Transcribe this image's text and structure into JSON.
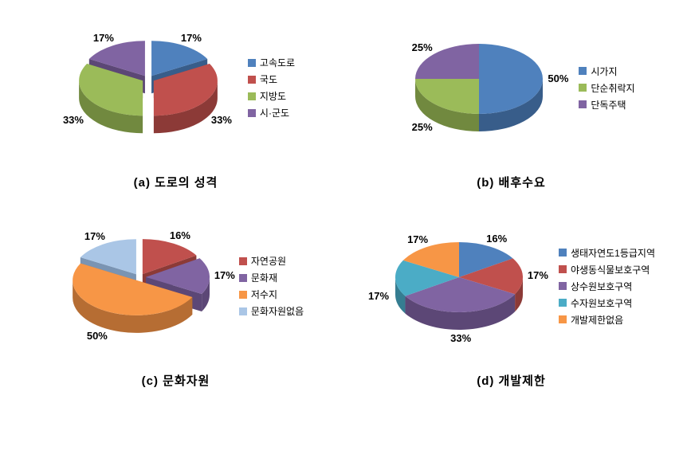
{
  "charts": [
    {
      "caption": "(a) 도로의 성격",
      "type": "pie",
      "radius": 80,
      "depth": 22,
      "tilt": 0.55,
      "explode_all": true,
      "explode_dist": 8,
      "slices": [
        {
          "label": "고속도로",
          "value": 17,
          "color": "#4f81bd",
          "dark": "#385d8a",
          "pct": "17%"
        },
        {
          "label": "국도",
          "value": 33,
          "color": "#c0504d",
          "dark": "#8c3a37",
          "pct": "33%"
        },
        {
          "label": "지방도",
          "value": 33,
          "color": "#9bbb59",
          "dark": "#71893f",
          "pct": "33%"
        },
        {
          "label": "시·군도",
          "value": 17,
          "color": "#8064a2",
          "dark": "#5c4776",
          "pct": "17%"
        }
      ]
    },
    {
      "caption": "(b) 배후수요",
      "type": "pie",
      "radius": 80,
      "depth": 22,
      "tilt": 0.55,
      "explode_all": false,
      "slices": [
        {
          "label": "시가지",
          "value": 50,
          "color": "#4f81bd",
          "dark": "#385d8a",
          "pct": "50%"
        },
        {
          "label": "단순취락지",
          "value": 25,
          "color": "#9bbb59",
          "dark": "#71893f",
          "pct": "25%"
        },
        {
          "label": "단독주택",
          "value": 25,
          "color": "#8064a2",
          "dark": "#5c4776",
          "pct": "25%"
        }
      ]
    },
    {
      "caption": "(c) 문화자원",
      "type": "pie",
      "radius": 80,
      "depth": 22,
      "tilt": 0.55,
      "explode_all": true,
      "explode_dist": 8,
      "slices": [
        {
          "label": "자연공원",
          "value": 16,
          "color": "#c0504d",
          "dark": "#8c3a37",
          "pct": "16%"
        },
        {
          "label": "문화재",
          "value": 17,
          "color": "#8064a2",
          "dark": "#5c4776",
          "pct": "17%"
        },
        {
          "label": "저수지",
          "value": 50,
          "color": "#f79646",
          "dark": "#b66d33",
          "pct": "50%"
        },
        {
          "label": "문화자원없음",
          "value": 17,
          "color": "#aac6e6",
          "dark": "#7a94b3",
          "pct": "17%"
        }
      ]
    },
    {
      "caption": "(d) 개발제한",
      "type": "pie",
      "radius": 80,
      "depth": 22,
      "tilt": 0.55,
      "explode_all": false,
      "slices": [
        {
          "label": "생태자연도1등급지역",
          "value": 16,
          "color": "#4f81bd",
          "dark": "#385d8a",
          "pct": "16%"
        },
        {
          "label": "야생동식물보호구역",
          "value": 17,
          "color": "#c0504d",
          "dark": "#8c3a37",
          "pct": "17%"
        },
        {
          "label": "상수원보호구역",
          "value": 33,
          "color": "#8064a2",
          "dark": "#5c4776",
          "pct": "33%"
        },
        {
          "label": "수자원보호구역",
          "value": 17,
          "color": "#4bacc6",
          "dark": "#357d91",
          "pct": "17%"
        },
        {
          "label": "개발제한없음",
          "value": 17,
          "color": "#f79646",
          "dark": "#b66d33",
          "pct": "17%"
        }
      ]
    }
  ]
}
